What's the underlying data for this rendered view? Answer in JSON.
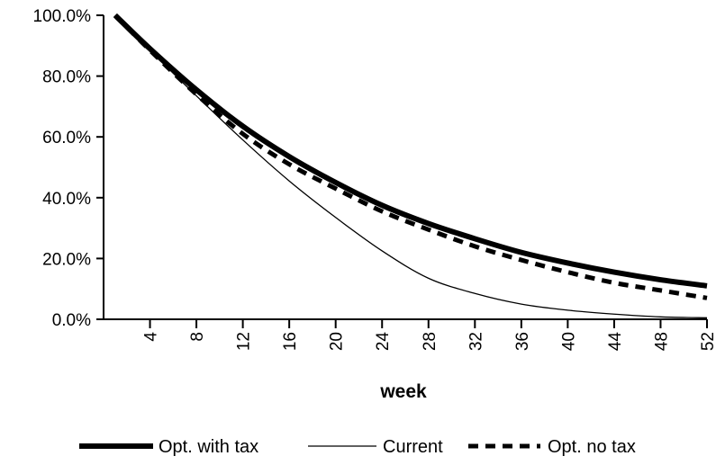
{
  "chart_data": {
    "type": "line",
    "title": "",
    "xlabel": "week",
    "ylabel": "",
    "x": [
      1,
      4,
      8,
      12,
      16,
      20,
      24,
      28,
      32,
      36,
      40,
      44,
      48,
      52
    ],
    "xlim": [
      0,
      52
    ],
    "ylim": [
      0,
      100
    ],
    "x_ticks": [
      "4",
      "8",
      "12",
      "16",
      "20",
      "24",
      "28",
      "32",
      "36",
      "40",
      "44",
      "48",
      "52"
    ],
    "x_tick_values": [
      4,
      8,
      12,
      16,
      20,
      24,
      28,
      32,
      36,
      40,
      44,
      48,
      52
    ],
    "y_ticks": [
      "0.0%",
      "20.0%",
      "40.0%",
      "60.0%",
      "80.0%",
      "100.0%"
    ],
    "y_tick_values": [
      0,
      20,
      40,
      60,
      80,
      100
    ],
    "grid": false,
    "legend_position": "bottom",
    "series": [
      {
        "name": "Opt. with tax",
        "style": "thick-solid",
        "color": "#000000",
        "values": [
          100,
          89,
          75.5,
          63.5,
          53.5,
          45,
          37.5,
          31.5,
          26.5,
          22,
          18.5,
          15.5,
          13,
          11
        ]
      },
      {
        "name": "Current",
        "style": "thin-solid",
        "color": "#000000",
        "values": [
          100,
          88.5,
          73.5,
          59,
          45.5,
          33.5,
          22.5,
          13.5,
          8.5,
          5,
          3,
          1.7,
          0.8,
          0.5
        ]
      },
      {
        "name": "Opt. no tax",
        "style": "dashed",
        "color": "#000000",
        "values": [
          100,
          88.5,
          74,
          61,
          51,
          43,
          35.5,
          29.5,
          24,
          19.5,
          15.5,
          12,
          9.5,
          7
        ]
      }
    ]
  }
}
